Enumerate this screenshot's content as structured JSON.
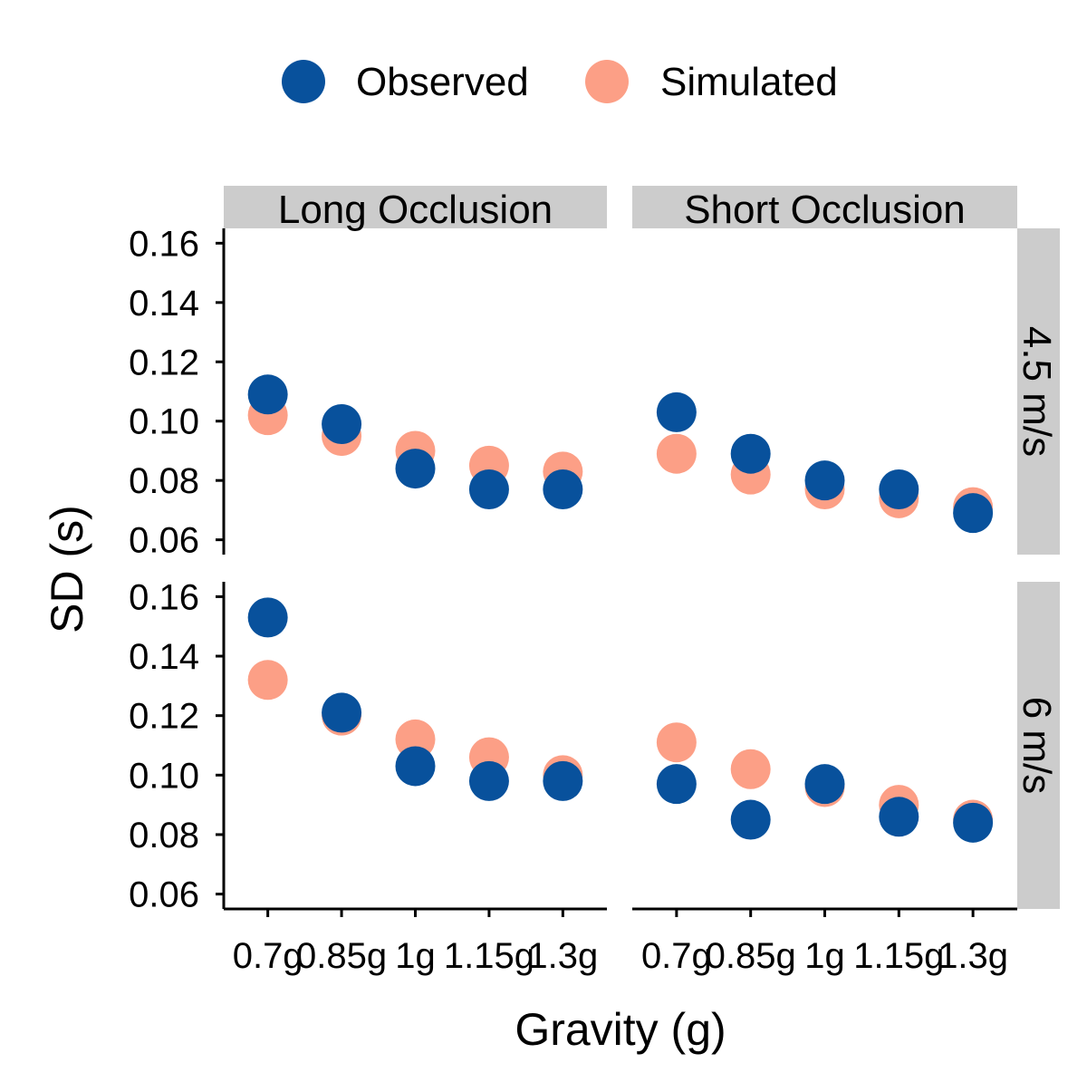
{
  "chart_data": {
    "type": "scatter",
    "legend": {
      "position": "top",
      "items": [
        {
          "name": "Observed",
          "color": "#08519c"
        },
        {
          "name": "Simulated",
          "color": "#fc9f86"
        }
      ]
    },
    "xlabel": "Gravity (g)",
    "ylabel": "SD (s)",
    "categories": [
      "0.7g",
      "0.85g",
      "1g",
      "1.15g",
      "1.3g"
    ],
    "ylim": [
      0.055,
      0.165
    ],
    "yticks": [
      "0.06",
      "0.08",
      "0.10",
      "0.12",
      "0.14",
      "0.16"
    ],
    "grid": false,
    "facet_columns": [
      "Long Occlusion",
      "Short Occlusion"
    ],
    "facet_rows": [
      "4.5 m/s",
      "6 m/s"
    ],
    "panels": [
      {
        "column": "Long Occlusion",
        "row": "4.5 m/s",
        "series": [
          {
            "name": "Simulated",
            "values": [
              0.102,
              0.095,
              0.09,
              0.085,
              0.083
            ]
          },
          {
            "name": "Observed",
            "values": [
              0.109,
              0.099,
              0.084,
              0.077,
              0.077
            ]
          }
        ]
      },
      {
        "column": "Short Occlusion",
        "row": "4.5 m/s",
        "series": [
          {
            "name": "Simulated",
            "values": [
              0.089,
              0.082,
              0.077,
              0.074,
              0.071
            ]
          },
          {
            "name": "Observed",
            "values": [
              0.103,
              0.089,
              0.08,
              0.077,
              0.069
            ]
          }
        ]
      },
      {
        "column": "Long Occlusion",
        "row": "6 m/s",
        "series": [
          {
            "name": "Simulated",
            "values": [
              0.132,
              0.12,
              0.112,
              0.106,
              0.1
            ]
          },
          {
            "name": "Observed",
            "values": [
              0.153,
              0.121,
              0.103,
              0.098,
              0.098
            ]
          }
        ]
      },
      {
        "column": "Short Occlusion",
        "row": "6 m/s",
        "series": [
          {
            "name": "Simulated",
            "values": [
              0.111,
              0.102,
              0.096,
              0.09,
              0.085
            ]
          },
          {
            "name": "Observed",
            "values": [
              0.097,
              0.085,
              0.097,
              0.086,
              0.084
            ]
          }
        ]
      }
    ]
  }
}
